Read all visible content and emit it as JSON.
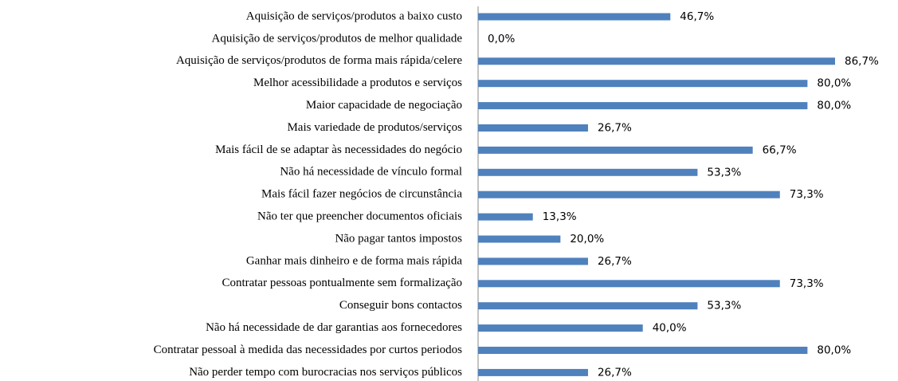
{
  "chart_data": {
    "type": "bar",
    "orientation": "horizontal",
    "color": "#4f81bd",
    "categories": [
      "Aquisição de serviços/produtos a baixo custo",
      "Aquisição de serviços/produtos de melhor qualidade",
      "Aquisição de serviços/produtos de forma mais rápida/celere",
      "Melhor acessibilidade a produtos e serviços",
      "Maior capacidade de negociação",
      "Mais variedade de produtos/serviços",
      "Mais fácil de se adaptar às necessidades do negócio",
      "Não há necessidade de vínculo formal",
      "Mais fácil fazer negócios de circunstância",
      "Não ter que preencher documentos oficiais",
      "Não pagar tantos impostos",
      "Ganhar mais  dinheiro e de forma mais rápida",
      "Contratar pessoas pontualmente sem formalização",
      "Conseguir bons contactos",
      "Não há necessidade de dar garantias aos fornecedores",
      "Contratar pessoal à medida das necessidades por curtos periodos",
      "Não perder tempo com burocracias nos serviços públicos"
    ],
    "values": [
      46.7,
      0.0,
      86.7,
      80.0,
      80.0,
      26.7,
      66.7,
      53.3,
      73.3,
      13.3,
      20.0,
      26.7,
      73.3,
      53.3,
      40.0,
      80.0,
      26.7
    ],
    "value_labels": [
      "46,7%",
      "0,0%",
      "86,7%",
      "80,0%",
      "80,0%",
      "26,7%",
      "66,7%",
      "53,3%",
      "73,3%",
      "13,3%",
      "20,0%",
      "26,7%",
      "73,3%",
      "53,3%",
      "40,0%",
      "80,0%",
      "26,7%"
    ]
  }
}
